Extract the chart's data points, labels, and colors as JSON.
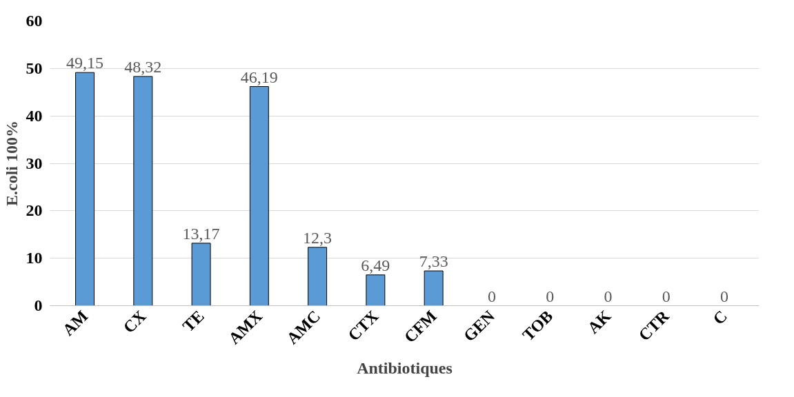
{
  "chart_data": {
    "type": "bar",
    "xlabel": "Antibiotiques",
    "ylabel": "E.coli 100%",
    "categories": [
      "AM",
      "CX",
      "TE",
      "AMX",
      "AMC",
      "CTX",
      "CFM",
      "GEN",
      "TOB",
      "AK",
      "CTR",
      "C"
    ],
    "values": [
      49.15,
      48.32,
      13.17,
      46.19,
      12.3,
      6.49,
      7.33,
      0,
      0,
      0,
      0,
      0
    ],
    "value_labels": [
      "49,15",
      "48,32",
      "13,17",
      "46,19",
      "12,3",
      "6,49",
      "7,33",
      "0",
      "0",
      "0",
      "0",
      "0"
    ],
    "color": "#5b9bd5",
    "ylim": [
      0,
      60
    ],
    "yticks": [
      0,
      10,
      20,
      30,
      40,
      50,
      60
    ],
    "grid": "y"
  }
}
